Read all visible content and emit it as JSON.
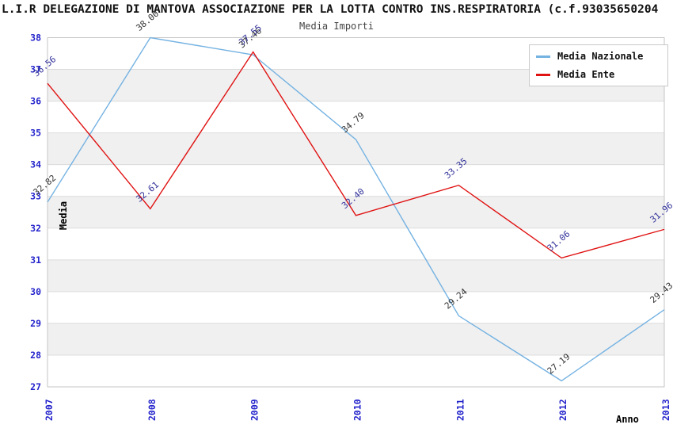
{
  "header": {
    "title": "L.I.R DELEGAZIONE DI MANTOVA ASSOCIAZIONE PER LA LOTTA CONTRO INS.RESPIRATORIA (c.f.93035650204",
    "subtitle": "Media Importi"
  },
  "chart_data": {
    "type": "line",
    "x": [
      2007,
      2008,
      2009,
      2010,
      2011,
      2012,
      2013
    ],
    "series": [
      {
        "name": "Media Nazionale",
        "color": "#74b2e2",
        "label_color": "#333333",
        "values": [
          32.82,
          38.0,
          37.46,
          34.79,
          29.24,
          27.19,
          29.43
        ]
      },
      {
        "name": "Media Ente",
        "color": "#e01212",
        "label_color": "#32329b",
        "values": [
          36.56,
          32.61,
          37.55,
          32.4,
          33.35,
          31.06,
          31.96
        ]
      }
    ],
    "xlabel": "Anno",
    "ylabel": "Media",
    "ylim": [
      27,
      38
    ],
    "ytick_step": 1,
    "grid": true,
    "legend_position": "top-right",
    "styles": {
      "band_fill": "#f0f0f0",
      "grid_color": "#dcdcdc",
      "plot_border": "#c6c6c6",
      "axis_text_color": "#2323cc",
      "axis_title_color": "#000000"
    }
  }
}
